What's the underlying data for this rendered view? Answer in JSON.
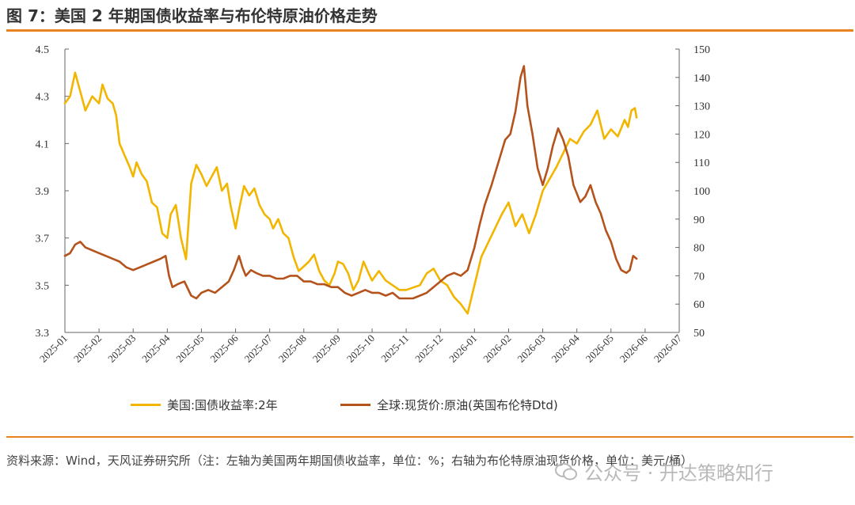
{
  "header": {
    "title": "图 7：美国 2 年期国债收益率与布伦特原油价格走势"
  },
  "footer": {
    "source": "资料来源：Wind，天风证券研究所（注：左轴为美国两年期国债收益率，单位：%；右轴为布伦特原油现货价格，单位：美元/桶）",
    "watermark": "公众号 · 开达策略知行"
  },
  "colors": {
    "accent": "#e8821f",
    "series_yield": "#f2b600",
    "series_oil": "#b5531c"
  },
  "chart_data": {
    "type": "line",
    "x_axis": {
      "categories": [
        "2025-01",
        "2025-02",
        "2025-03",
        "2025-04",
        "2025-05",
        "2025-06",
        "2025-07",
        "2025-08",
        "2025-09",
        "2025-10",
        "2025-11",
        "2025-12",
        "2026-01",
        "2026-02",
        "2026-03",
        "2026-04",
        "2026-05",
        "2026-06",
        "2026-07"
      ]
    },
    "y_left": {
      "ylim": [
        3.3,
        4.5
      ],
      "ticks": [
        "3.3",
        "3.5",
        "3.7",
        "3.9",
        "4.1",
        "4.3",
        "4.5"
      ]
    },
    "y_right": {
      "ylim": [
        50,
        150
      ],
      "ticks": [
        "50",
        "60",
        "70",
        "80",
        "90",
        "100",
        "110",
        "120",
        "130",
        "140",
        "150"
      ]
    },
    "grid": false,
    "legend_position": "bottom",
    "series": [
      {
        "name": "美国:国债收益率:2年",
        "axis": "left",
        "points": [
          [
            0,
            4.27
          ],
          [
            0.15,
            4.3
          ],
          [
            0.3,
            4.4
          ],
          [
            0.45,
            4.32
          ],
          [
            0.6,
            4.24
          ],
          [
            0.8,
            4.3
          ],
          [
            1.0,
            4.27
          ],
          [
            1.1,
            4.35
          ],
          [
            1.25,
            4.29
          ],
          [
            1.4,
            4.27
          ],
          [
            1.5,
            4.22
          ],
          [
            1.6,
            4.1
          ],
          [
            1.75,
            4.05
          ],
          [
            1.9,
            4.0
          ],
          [
            2.0,
            3.96
          ],
          [
            2.1,
            4.02
          ],
          [
            2.25,
            3.97
          ],
          [
            2.4,
            3.94
          ],
          [
            2.55,
            3.85
          ],
          [
            2.7,
            3.83
          ],
          [
            2.85,
            3.72
          ],
          [
            3.0,
            3.7
          ],
          [
            3.1,
            3.8
          ],
          [
            3.25,
            3.84
          ],
          [
            3.4,
            3.7
          ],
          [
            3.55,
            3.61
          ],
          [
            3.7,
            3.93
          ],
          [
            3.85,
            4.01
          ],
          [
            4.0,
            3.97
          ],
          [
            4.15,
            3.92
          ],
          [
            4.3,
            3.96
          ],
          [
            4.45,
            4.0
          ],
          [
            4.6,
            3.9
          ],
          [
            4.75,
            3.93
          ],
          [
            4.85,
            3.84
          ],
          [
            5.0,
            3.74
          ],
          [
            5.1,
            3.82
          ],
          [
            5.25,
            3.92
          ],
          [
            5.4,
            3.88
          ],
          [
            5.55,
            3.91
          ],
          [
            5.7,
            3.84
          ],
          [
            5.85,
            3.8
          ],
          [
            6.0,
            3.78
          ],
          [
            6.1,
            3.74
          ],
          [
            6.25,
            3.78
          ],
          [
            6.4,
            3.72
          ],
          [
            6.55,
            3.7
          ],
          [
            6.7,
            3.62
          ],
          [
            6.85,
            3.56
          ],
          [
            7.0,
            3.58
          ],
          [
            7.15,
            3.6
          ],
          [
            7.3,
            3.63
          ],
          [
            7.45,
            3.56
          ],
          [
            7.6,
            3.52
          ],
          [
            7.75,
            3.5
          ],
          [
            7.9,
            3.55
          ],
          [
            8.0,
            3.6
          ],
          [
            8.15,
            3.59
          ],
          [
            8.3,
            3.55
          ],
          [
            8.45,
            3.48
          ],
          [
            8.6,
            3.52
          ],
          [
            8.75,
            3.6
          ],
          [
            8.9,
            3.55
          ],
          [
            9.0,
            3.52
          ],
          [
            9.2,
            3.56
          ],
          [
            9.4,
            3.52
          ],
          [
            9.6,
            3.5
          ],
          [
            9.8,
            3.48
          ],
          [
            10.0,
            3.48
          ],
          [
            10.2,
            3.49
          ],
          [
            10.4,
            3.5
          ],
          [
            10.6,
            3.55
          ],
          [
            10.8,
            3.57
          ],
          [
            11.0,
            3.52
          ],
          [
            11.2,
            3.5
          ],
          [
            11.4,
            3.45
          ],
          [
            11.6,
            3.42
          ],
          [
            11.8,
            3.38
          ],
          [
            12.0,
            3.5
          ],
          [
            12.2,
            3.62
          ],
          [
            12.4,
            3.68
          ],
          [
            12.6,
            3.74
          ],
          [
            12.8,
            3.8
          ],
          [
            13.0,
            3.85
          ],
          [
            13.2,
            3.75
          ],
          [
            13.4,
            3.8
          ],
          [
            13.6,
            3.72
          ],
          [
            13.8,
            3.8
          ],
          [
            14.0,
            3.9
          ],
          [
            14.2,
            3.95
          ],
          [
            14.4,
            4.0
          ],
          [
            14.6,
            4.06
          ],
          [
            14.8,
            4.12
          ],
          [
            15.0,
            4.1
          ],
          [
            15.2,
            4.15
          ],
          [
            15.4,
            4.18
          ],
          [
            15.6,
            4.24
          ],
          [
            15.8,
            4.12
          ],
          [
            16.0,
            4.16
          ],
          [
            16.2,
            4.13
          ],
          [
            16.4,
            4.2
          ],
          [
            16.5,
            4.17
          ],
          [
            16.6,
            4.24
          ],
          [
            16.7,
            4.25
          ],
          [
            16.75,
            4.21
          ]
        ]
      },
      {
        "name": "全球:现货价:原油(英国布伦特Dtd)",
        "axis": "right",
        "points": [
          [
            0,
            77
          ],
          [
            0.15,
            78
          ],
          [
            0.3,
            81
          ],
          [
            0.45,
            82
          ],
          [
            0.6,
            80
          ],
          [
            0.8,
            79
          ],
          [
            1.0,
            78
          ],
          [
            1.2,
            77
          ],
          [
            1.4,
            76
          ],
          [
            1.6,
            75
          ],
          [
            1.8,
            73
          ],
          [
            2.0,
            72
          ],
          [
            2.2,
            73
          ],
          [
            2.4,
            74
          ],
          [
            2.6,
            75
          ],
          [
            2.8,
            76
          ],
          [
            2.95,
            77
          ],
          [
            3.05,
            70
          ],
          [
            3.15,
            66
          ],
          [
            3.3,
            67
          ],
          [
            3.5,
            68
          ],
          [
            3.7,
            63
          ],
          [
            3.85,
            62
          ],
          [
            4.0,
            64
          ],
          [
            4.2,
            65
          ],
          [
            4.4,
            64
          ],
          [
            4.6,
            66
          ],
          [
            4.8,
            68
          ],
          [
            4.95,
            72
          ],
          [
            5.1,
            77
          ],
          [
            5.2,
            73
          ],
          [
            5.3,
            70
          ],
          [
            5.45,
            72
          ],
          [
            5.6,
            71
          ],
          [
            5.8,
            70
          ],
          [
            6.0,
            70
          ],
          [
            6.2,
            69
          ],
          [
            6.4,
            69
          ],
          [
            6.6,
            70
          ],
          [
            6.8,
            70
          ],
          [
            7.0,
            68
          ],
          [
            7.2,
            68
          ],
          [
            7.4,
            67
          ],
          [
            7.6,
            67
          ],
          [
            7.8,
            66
          ],
          [
            8.0,
            66
          ],
          [
            8.2,
            64
          ],
          [
            8.4,
            63
          ],
          [
            8.6,
            64
          ],
          [
            8.8,
            65
          ],
          [
            9.0,
            64
          ],
          [
            9.2,
            64
          ],
          [
            9.4,
            63
          ],
          [
            9.6,
            64
          ],
          [
            9.8,
            62
          ],
          [
            10.0,
            62
          ],
          [
            10.2,
            62
          ],
          [
            10.4,
            63
          ],
          [
            10.6,
            64
          ],
          [
            10.8,
            66
          ],
          [
            11.0,
            68
          ],
          [
            11.2,
            70
          ],
          [
            11.4,
            71
          ],
          [
            11.6,
            70
          ],
          [
            11.8,
            72
          ],
          [
            12.0,
            80
          ],
          [
            12.15,
            88
          ],
          [
            12.3,
            95
          ],
          [
            12.5,
            102
          ],
          [
            12.7,
            110
          ],
          [
            12.9,
            118
          ],
          [
            13.05,
            120
          ],
          [
            13.2,
            128
          ],
          [
            13.35,
            140
          ],
          [
            13.45,
            144
          ],
          [
            13.55,
            130
          ],
          [
            13.7,
            120
          ],
          [
            13.85,
            108
          ],
          [
            14.0,
            102
          ],
          [
            14.15,
            108
          ],
          [
            14.3,
            116
          ],
          [
            14.45,
            122
          ],
          [
            14.6,
            118
          ],
          [
            14.75,
            112
          ],
          [
            14.9,
            102
          ],
          [
            15.1,
            96
          ],
          [
            15.25,
            98
          ],
          [
            15.4,
            102
          ],
          [
            15.55,
            96
          ],
          [
            15.7,
            92
          ],
          [
            15.85,
            86
          ],
          [
            16.0,
            82
          ],
          [
            16.15,
            76
          ],
          [
            16.3,
            72
          ],
          [
            16.45,
            71
          ],
          [
            16.55,
            72
          ],
          [
            16.65,
            77
          ],
          [
            16.75,
            76
          ]
        ]
      }
    ]
  }
}
